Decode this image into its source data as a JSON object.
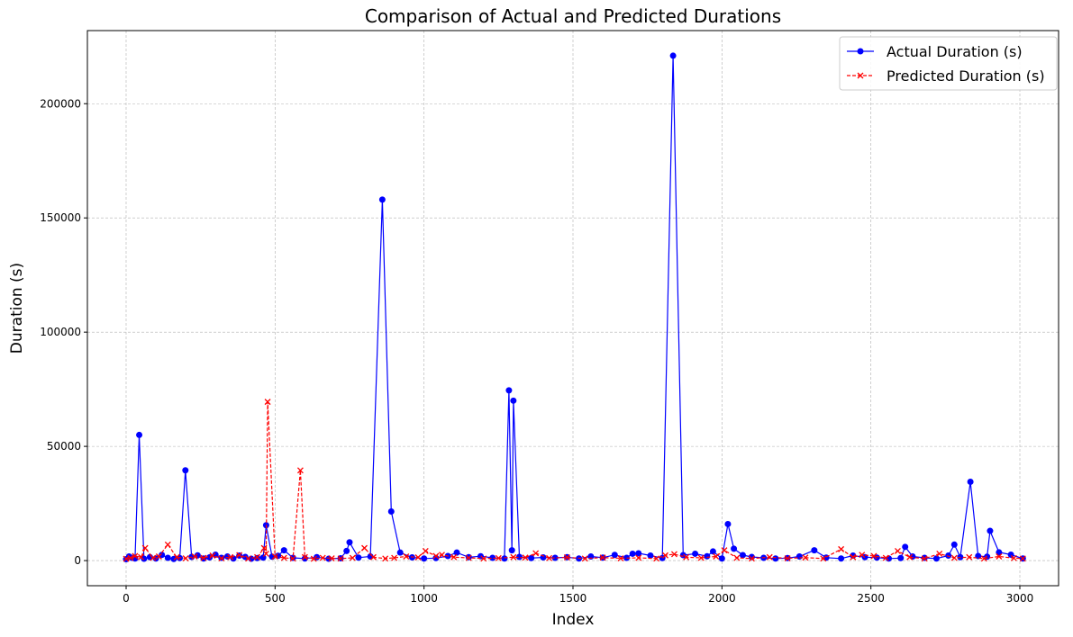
{
  "chart_data": {
    "type": "line",
    "title": "Comparison of Actual and Predicted Durations",
    "xlabel": "Index",
    "ylabel": "Duration (s)",
    "xlim": [
      -130,
      3130
    ],
    "ylim": [
      -11000,
      232000
    ],
    "xticks": [
      0,
      500,
      1000,
      1500,
      2000,
      2500,
      3000
    ],
    "xtick_labels": [
      "0",
      "500",
      "1000",
      "1500",
      "2000",
      "2500",
      "3000"
    ],
    "yticks": [
      0,
      50000,
      100000,
      150000,
      200000
    ],
    "ytick_labels": [
      "0",
      "50000",
      "100000",
      "150000",
      "200000"
    ],
    "grid": true,
    "legend_position": "upper right",
    "series": [
      {
        "name": "Actual Duration (s)",
        "color": "#0000ff",
        "marker": "circle",
        "line_style": "solid",
        "x": [
          0,
          10,
          20,
          30,
          44,
          60,
          80,
          100,
          120,
          140,
          160,
          180,
          199,
          220,
          240,
          260,
          280,
          300,
          320,
          340,
          360,
          380,
          400,
          420,
          440,
          460,
          470,
          490,
          510,
          530,
          560,
          600,
          640,
          680,
          720,
          740,
          750,
          780,
          820,
          860,
          890,
          920,
          960,
          1000,
          1040,
          1080,
          1110,
          1150,
          1190,
          1230,
          1270,
          1285,
          1295,
          1300,
          1320,
          1360,
          1400,
          1440,
          1480,
          1520,
          1560,
          1600,
          1640,
          1680,
          1700,
          1720,
          1760,
          1800,
          1836,
          1870,
          1910,
          1950,
          1970,
          2000,
          2020,
          2040,
          2070,
          2100,
          2140,
          2180,
          2220,
          2260,
          2310,
          2350,
          2400,
          2440,
          2480,
          2520,
          2560,
          2600,
          2615,
          2640,
          2680,
          2720,
          2760,
          2780,
          2800,
          2834,
          2860,
          2890,
          2900,
          2930,
          2970,
          3010
        ],
        "y": [
          600,
          1800,
          1200,
          900,
          55000,
          800,
          1500,
          900,
          2500,
          1200,
          700,
          1100,
          39500,
          1600,
          2300,
          900,
          1400,
          2600,
          1200,
          1800,
          900,
          2200,
          1600,
          800,
          1100,
          1300,
          15500,
          1700,
          2100,
          4500,
          1200,
          900,
          1500,
          800,
          1000,
          4200,
          8000,
          1300,
          1800,
          158000,
          21500,
          3500,
          1400,
          900,
          1100,
          2000,
          3500,
          1500,
          1900,
          1200,
          900,
          74500,
          4500,
          70000,
          1600,
          1100,
          1400,
          1200,
          1500,
          900,
          1800,
          1300,
          2500,
          1200,
          3000,
          3200,
          2200,
          1100,
          221000,
          2400,
          3000,
          1900,
          4000,
          900,
          16000,
          5200,
          2400,
          1600,
          1200,
          900,
          1100,
          1800,
          4500,
          1300,
          900,
          2200,
          1500,
          1300,
          900,
          1100,
          6000,
          1800,
          1200,
          900,
          2200,
          7000,
          1500,
          34500,
          2000,
          1700,
          13000,
          3600,
          2600,
          900
        ]
      },
      {
        "name": "Predicted Duration (s)",
        "color": "#ff0000",
        "marker": "x",
        "line_style": "dashed",
        "x": [
          0,
          15,
          30,
          50,
          64,
          90,
          110,
          140,
          170,
          200,
          230,
          260,
          290,
          320,
          350,
          380,
          410,
          440,
          463,
          470,
          475,
          500,
          530,
          560,
          585,
          600,
          630,
          660,
          690,
          720,
          760,
          800,
          830,
          870,
          900,
          940,
          980,
          1005,
          1040,
          1060,
          1100,
          1150,
          1200,
          1250,
          1300,
          1340,
          1375,
          1420,
          1480,
          1540,
          1600,
          1660,
          1720,
          1780,
          1810,
          1840,
          1880,
          1930,
          1980,
          2008,
          2050,
          2100,
          2160,
          2220,
          2280,
          2340,
          2400,
          2440,
          2470,
          2510,
          2550,
          2590,
          2630,
          2680,
          2730,
          2780,
          2830,
          2880,
          2930,
          2980,
          3010
        ],
        "y": [
          800,
          1200,
          2000,
          1500,
          5500,
          1200,
          1800,
          7000,
          1500,
          1000,
          1800,
          1200,
          2200,
          1000,
          1500,
          2400,
          900,
          1500,
          5500,
          3000,
          69500,
          1800,
          1200,
          900,
          39500,
          1500,
          800,
          1200,
          1000,
          900,
          1200,
          5500,
          1500,
          900,
          1200,
          1800,
          1400,
          4200,
          2000,
          2500,
          1500,
          1200,
          900,
          1100,
          1500,
          1300,
          3200,
          1100,
          1400,
          900,
          1300,
          1000,
          1200,
          900,
          2300,
          2800,
          1500,
          1200,
          1800,
          4500,
          1200,
          900,
          1500,
          1000,
          1300,
          900,
          5000,
          1500,
          2500,
          2000,
          1200,
          4200,
          1500,
          900,
          3000,
          1200,
          1500,
          900,
          1800,
          1100,
          900
        ]
      }
    ]
  }
}
